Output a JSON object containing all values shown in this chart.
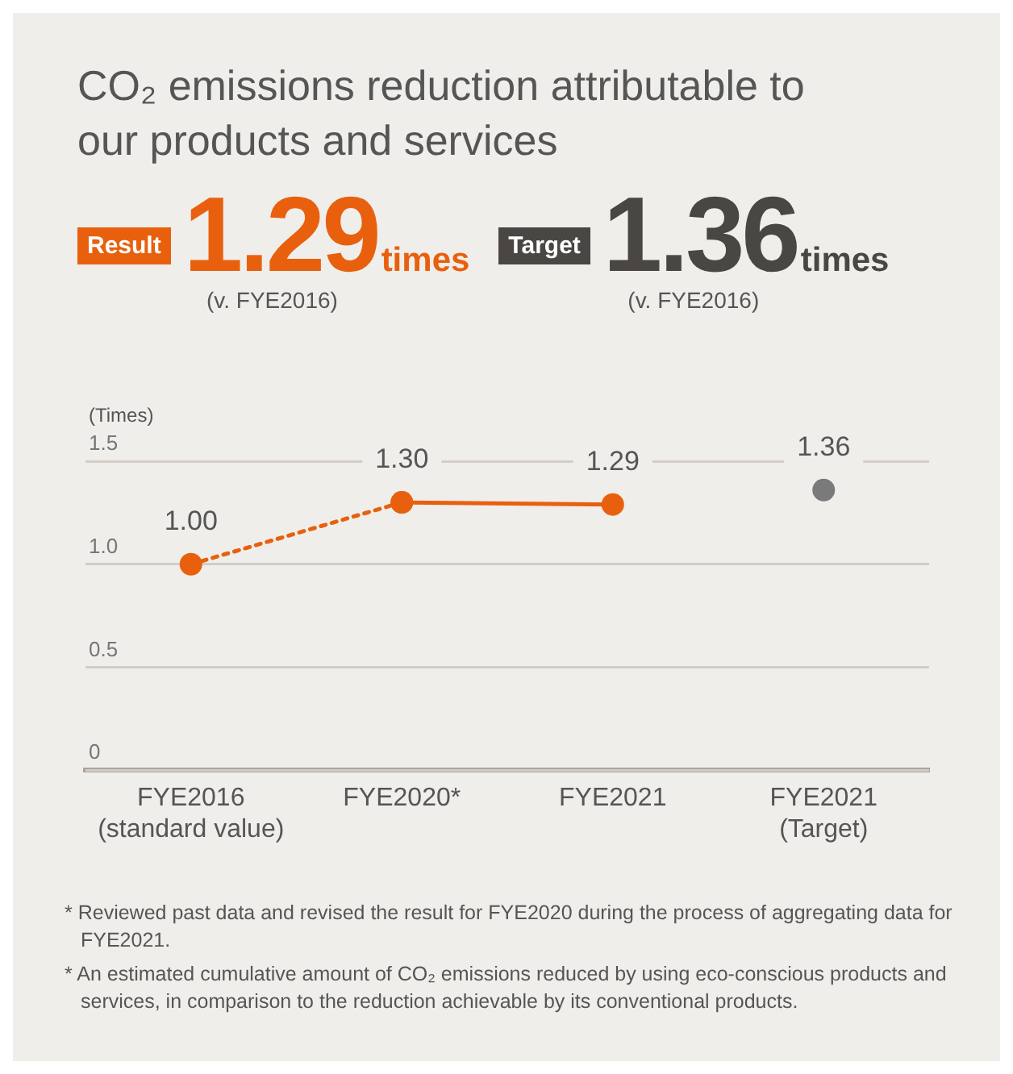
{
  "chart_data": {
    "type": "line",
    "title": "CO₂ emissions reduction attributable to our products and services",
    "ylabel": "(Times)",
    "categories": [
      "FYE2016 (standard value)",
      "FYE2020*",
      "FYE2021",
      "FYE2021 (Target)"
    ],
    "series": [
      {
        "color": "#e8600e",
        "line_style": "dotted",
        "values": [
          1.0,
          1.3,
          null,
          null
        ],
        "value_labels": [
          "1.00",
          null,
          null,
          null
        ]
      },
      {
        "color": "#e8600e",
        "line_style": "solid",
        "values": [
          null,
          1.3,
          1.29,
          null
        ],
        "value_labels": [
          null,
          "1.30",
          "1.29",
          null
        ]
      },
      {
        "type": "scatter",
        "color": "#7a7a7a",
        "values": [
          null,
          null,
          null,
          1.36
        ],
        "value_labels": [
          null,
          null,
          null,
          "1.36"
        ]
      }
    ],
    "ylim": [
      0,
      1.5
    ],
    "yticks": [
      0,
      0.5,
      {
        "value": 1,
        "label": "1.0"
      },
      {
        "value": 1.5,
        "label": "1.5"
      }
    ],
    "grid": "y",
    "legend": false,
    "marker": "circle",
    "annotations": [
      "Result",
      "1.29",
      "times",
      "(v. FYE2016)",
      "Target",
      "1.36",
      "times",
      "(v. FYE2016)",
      "* Reviewed past data and revised the result for FYE2020 during the process of aggregating data for FYE2021.",
      "* An estimated cumulative amount of CO₂ emissions reduced by using eco-conscious products and services, in comparison to the reduction achievable by its conventional products."
    ]
  }
}
